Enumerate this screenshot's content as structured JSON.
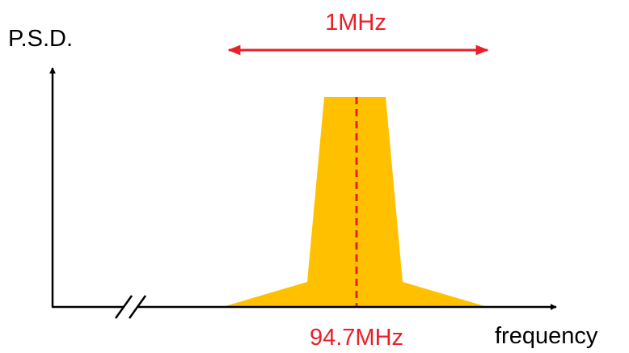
{
  "labels": {
    "y_axis": "P.S.D.",
    "x_axis": "frequency",
    "bandwidth": "1MHz",
    "center_frequency": "94.7MHz"
  },
  "colors": {
    "spectrum_fill": "#FFC000",
    "annotation": "#E8202A",
    "axis": "#000000",
    "text": "#000000"
  }
}
